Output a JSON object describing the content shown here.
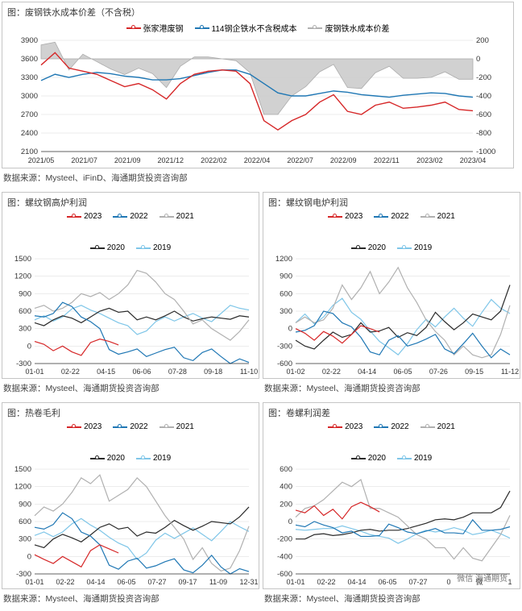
{
  "top_chart": {
    "title": "图：废钢铁水成本价差（不含税）",
    "source": "数据来源：Mysteel、iFinD、海通期货投资咨询部",
    "legend": [
      {
        "label": "张家港废钢",
        "color": "#d62728",
        "marker": "circle"
      },
      {
        "label": "114钢企铁水不含税成本",
        "color": "#1f77b4",
        "marker": "circle"
      },
      {
        "label": "废钢铁水成本价差",
        "color": "#b0b0b0",
        "marker": "circle"
      }
    ],
    "left_axis": {
      "min": 2100,
      "max": 3900,
      "step": 300
    },
    "right_axis": {
      "min": -1000,
      "max": 200,
      "step": 200
    },
    "x_labels": [
      "2021/05",
      "2021/07",
      "2021/09",
      "2021/12",
      "2022/02",
      "2022/04",
      "2022/07",
      "2022/09",
      "2022/11",
      "2023/02",
      "2023/04"
    ],
    "series_red": [
      3500,
      3700,
      3450,
      3400,
      3350,
      3250,
      3150,
      3200,
      3100,
      2950,
      3200,
      3350,
      3400,
      3420,
      3400,
      3200,
      2600,
      2450,
      2600,
      2700,
      2900,
      3020,
      2750,
      2700,
      2850,
      2900,
      2800,
      2820,
      2850,
      2900,
      2780,
      2760
    ],
    "series_blue": [
      3250,
      3350,
      3300,
      3350,
      3380,
      3360,
      3320,
      3300,
      3260,
      3260,
      3280,
      3330,
      3380,
      3420,
      3420,
      3350,
      3200,
      3050,
      3000,
      3000,
      3040,
      3080,
      3060,
      3020,
      3000,
      2980,
      3010,
      3030,
      3050,
      3040,
      3000,
      2980
    ],
    "series_grey": [
      150,
      180,
      -120,
      50,
      -30,
      -110,
      -170,
      -100,
      -160,
      -310,
      -80,
      20,
      20,
      0,
      -20,
      -150,
      -600,
      -600,
      -400,
      -300,
      -140,
      -60,
      -310,
      -320,
      -150,
      -80,
      -210,
      -210,
      -200,
      -140,
      -220,
      -220
    ]
  },
  "quad": [
    {
      "title": "图：螺纹钢高炉利润",
      "source": "数据来源：Mysteel、海通期货投资咨询部",
      "y": {
        "min": -300,
        "max": 1500,
        "step": 300
      },
      "x_labels": [
        "01-01",
        "02-22",
        "04-15",
        "06-06",
        "07-28",
        "09-18",
        "11-10"
      ],
      "years": {
        "2023": {
          "color": "#d62728",
          "vals": [
            80,
            30,
            -80,
            0,
            -100,
            -160,
            60,
            120,
            80,
            20,
            null,
            null,
            null,
            null,
            null,
            null,
            null,
            null,
            null,
            null,
            null,
            null,
            null,
            null
          ]
        },
        "2022": {
          "color": "#1f77b4",
          "vals": [
            520,
            500,
            560,
            750,
            680,
            500,
            420,
            300,
            -60,
            -140,
            -100,
            -50,
            -180,
            -120,
            -60,
            -20,
            -200,
            -250,
            -110,
            -50,
            -180,
            -300,
            -220,
            -280
          ]
        },
        "2021": {
          "color": "#b0b0b0",
          "vals": [
            650,
            700,
            600,
            650,
            750,
            900,
            850,
            920,
            800,
            900,
            1050,
            1300,
            1250,
            1100,
            900,
            800,
            600,
            380,
            450,
            300,
            200,
            100,
            250,
            450
          ]
        },
        "2020": {
          "color": "#2a2a2a",
          "vals": [
            400,
            350,
            450,
            520,
            480,
            400,
            500,
            600,
            650,
            580,
            600,
            450,
            500,
            450,
            520,
            600,
            500,
            430,
            470,
            500,
            480,
            460,
            520,
            500
          ]
        },
        "2019": {
          "color": "#7fc6e8",
          "vals": [
            450,
            520,
            430,
            500,
            640,
            700,
            620,
            560,
            480,
            400,
            350,
            200,
            260,
            420,
            500,
            430,
            500,
            560,
            480,
            420,
            560,
            700,
            650,
            620
          ]
        }
      }
    },
    {
      "title": "图：螺纹钢电炉利润",
      "source": "数据来源：Mysteel、海通期货投资咨询部",
      "y": {
        "min": -600,
        "max": 1200,
        "step": 300
      },
      "x_labels": [
        "01-02",
        "02-22",
        "04-14",
        "06-05",
        "07-26",
        "09-15",
        "11-12"
      ],
      "years": {
        "2023": {
          "color": "#d62728",
          "vals": [
            0,
            -80,
            -200,
            -50,
            -130,
            -250,
            -100,
            50,
            0,
            -60,
            null,
            null,
            null,
            null,
            null,
            null,
            null,
            null,
            null,
            null,
            null,
            null,
            null,
            null
          ]
        },
        "2022": {
          "color": "#1f77b4",
          "vals": [
            -60,
            -30,
            50,
            300,
            260,
            100,
            30,
            -150,
            -400,
            -450,
            -200,
            -120,
            -300,
            -250,
            -180,
            -100,
            -350,
            -430,
            -260,
            -80,
            -300,
            -500,
            -350,
            -450
          ]
        },
        "2021": {
          "color": "#b0b0b0",
          "vals": [
            100,
            200,
            100,
            150,
            350,
            750,
            500,
            700,
            980,
            600,
            800,
            1050,
            700,
            450,
            150,
            -50,
            -200,
            -450,
            -300,
            -450,
            -500,
            -450,
            -100,
            400
          ]
        },
        "2020": {
          "color": "#2a2a2a",
          "vals": [
            -200,
            -300,
            -350,
            -200,
            -60,
            -150,
            -100,
            100,
            -60,
            -40,
            20,
            -150,
            -70,
            -120,
            20,
            280,
            120,
            -20,
            100,
            250,
            200,
            150,
            300,
            750
          ]
        },
        "2019": {
          "color": "#7fc6e8",
          "vals": [
            100,
            250,
            80,
            200,
            400,
            520,
            280,
            160,
            -40,
            -220,
            -330,
            -450,
            -260,
            -20,
            160,
            30,
            200,
            350,
            180,
            40,
            280,
            500,
            350,
            260
          ]
        }
      }
    },
    {
      "title": "图：热卷毛利",
      "source": "数据来源：Mysteel、海通期货投资咨询部",
      "y": {
        "min": -300,
        "max": 1500,
        "step": 300
      },
      "x_labels": [
        "01-01",
        "02-22",
        "04-14",
        "06-05",
        "07-27",
        "09-17",
        "11-09",
        "12-31"
      ],
      "years": {
        "2023": {
          "color": "#d62728",
          "vals": [
            30,
            -50,
            -120,
            0,
            -90,
            -180,
            100,
            200,
            130,
            60,
            null,
            null,
            null,
            null,
            null,
            null,
            null,
            null,
            null,
            null,
            null,
            null,
            null,
            null
          ]
        },
        "2022": {
          "color": "#1f77b4",
          "vals": [
            500,
            470,
            550,
            750,
            650,
            420,
            350,
            200,
            -150,
            -220,
            -80,
            -30,
            -200,
            -160,
            -90,
            -40,
            -230,
            -280,
            -150,
            20,
            -180,
            -300,
            -210,
            -260
          ]
        },
        "2021": {
          "color": "#b0b0b0",
          "vals": [
            700,
            850,
            780,
            900,
            1100,
            1350,
            1250,
            1400,
            950,
            1050,
            1150,
            1350,
            1200,
            950,
            700,
            500,
            300,
            -50,
            150,
            -120,
            -250,
            -200,
            100,
            520
          ]
        },
        "2020": {
          "color": "#2a2a2a",
          "vals": [
            200,
            150,
            300,
            380,
            320,
            250,
            370,
            500,
            560,
            470,
            500,
            350,
            420,
            400,
            500,
            620,
            530,
            450,
            520,
            600,
            580,
            560,
            680,
            850
          ]
        },
        "2019": {
          "color": "#7fc6e8",
          "vals": [
            360,
            420,
            340,
            420,
            560,
            650,
            540,
            450,
            330,
            230,
            160,
            -50,
            60,
            280,
            400,
            310,
            400,
            490,
            380,
            270,
            430,
            600,
            510,
            430
          ]
        }
      }
    },
    {
      "title": "图：卷螺利润差",
      "source": "数据来源：Mysteel、海通期货投资咨询部",
      "y": {
        "min": -600,
        "max": 600,
        "step": 200
      },
      "x_labels": [
        "01-01",
        "02-22",
        "04-14",
        "06-05",
        "07-27",
        "0",
        "微",
        "1"
      ],
      "watermark": "微信 海通期货",
      "years": {
        "2023": {
          "color": "#d62728",
          "vals": [
            130,
            100,
            180,
            70,
            140,
            30,
            170,
            220,
            170,
            110,
            null,
            null,
            null,
            null,
            null,
            null,
            null,
            null,
            null,
            null,
            null,
            null,
            null,
            null
          ]
        },
        "2022": {
          "color": "#1f77b4",
          "vals": [
            -40,
            -60,
            0,
            -40,
            -70,
            -130,
            -110,
            -170,
            -170,
            -160,
            -30,
            -70,
            -120,
            -140,
            -110,
            -80,
            -130,
            -130,
            -140,
            20,
            -100,
            -100,
            -90,
            -60
          ]
        },
        "2021": {
          "color": "#b0b0b0",
          "vals": [
            50,
            150,
            180,
            250,
            350,
            450,
            400,
            480,
            150,
            150,
            100,
            50,
            -50,
            -150,
            -200,
            -300,
            -300,
            -430,
            -300,
            -420,
            -450,
            -300,
            -150,
            70
          ]
        },
        "2020": {
          "color": "#2a2a2a",
          "vals": [
            -200,
            -200,
            -150,
            -140,
            -160,
            -150,
            -130,
            -100,
            -90,
            -110,
            -100,
            -100,
            -80,
            -50,
            -20,
            20,
            30,
            20,
            50,
            100,
            100,
            100,
            160,
            350
          ]
        },
        "2019": {
          "color": "#7fc6e8",
          "vals": [
            -90,
            -100,
            -90,
            -80,
            -80,
            -50,
            -80,
            -110,
            -150,
            -170,
            -190,
            -250,
            -200,
            -140,
            -100,
            -120,
            -100,
            -70,
            -100,
            -150,
            -130,
            -100,
            -140,
            -190
          ]
        }
      }
    }
  ],
  "year_legend": [
    {
      "label": "2023",
      "color": "#d62728"
    },
    {
      "label": "2022",
      "color": "#1f77b4"
    },
    {
      "label": "2021",
      "color": "#b0b0b0"
    },
    {
      "label": "2020",
      "color": "#2a2a2a"
    },
    {
      "label": "2019",
      "color": "#7fc6e8"
    }
  ]
}
